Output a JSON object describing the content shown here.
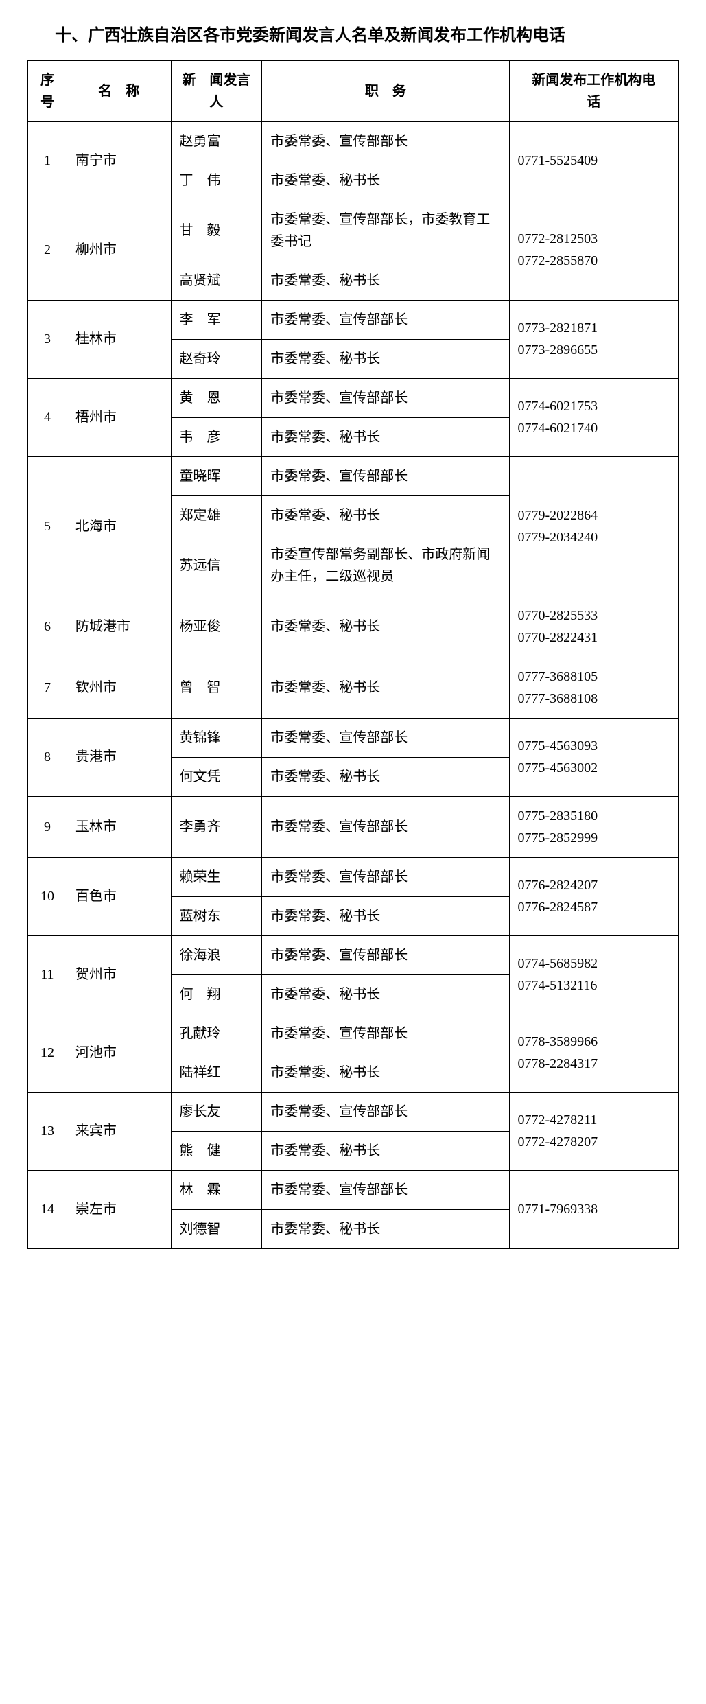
{
  "title": "十、广西壮族自治区各市党委新闻发言人名单及新闻发布工作机构电话",
  "headers": {
    "seq": "序号",
    "name": "名　称",
    "person": "新　闻发言人",
    "duty": "职　务",
    "phone": "新闻发布工作机构电　　话"
  },
  "rows": [
    {
      "seq": "1",
      "name": "南宁市",
      "phone": "0771-5525409",
      "people": [
        {
          "person": "赵勇富",
          "duty": "市委常委、宣传部部长"
        },
        {
          "person": "丁　伟",
          "duty": "市委常委、秘书长"
        }
      ]
    },
    {
      "seq": "2",
      "name": "柳州市",
      "phone": "0772-2812503\n0772-2855870",
      "people": [
        {
          "person": "甘　毅",
          "duty": "市委常委、宣传部部长，市委教育工委书记"
        },
        {
          "person": "高贤斌",
          "duty": "市委常委、秘书长"
        }
      ]
    },
    {
      "seq": "3",
      "name": "桂林市",
      "phone": "0773-2821871\n0773-2896655",
      "people": [
        {
          "person": "李　军",
          "duty": "市委常委、宣传部部长"
        },
        {
          "person": "赵奇玲",
          "duty": "市委常委、秘书长"
        }
      ]
    },
    {
      "seq": "4",
      "name": "梧州市",
      "phone": "0774-6021753\n0774-6021740",
      "people": [
        {
          "person": "黄　恩",
          "duty": "市委常委、宣传部部长"
        },
        {
          "person": "韦　彦",
          "duty": "市委常委、秘书长"
        }
      ]
    },
    {
      "seq": "5",
      "name": "北海市",
      "phone": "0779-2022864\n0779-2034240",
      "people": [
        {
          "person": "童晓晖",
          "duty": "市委常委、宣传部部长"
        },
        {
          "person": "郑定雄",
          "duty": "市委常委、秘书长"
        },
        {
          "person": "苏远信",
          "duty": "市委宣传部常务副部长、市政府新闻办主任，二级巡视员"
        }
      ]
    },
    {
      "seq": "6",
      "name": "防城港市",
      "phone": "0770-2825533\n0770-2822431",
      "people": [
        {
          "person": "杨亚俊",
          "duty": "市委常委、秘书长"
        }
      ]
    },
    {
      "seq": "7",
      "name": "钦州市",
      "phone": "0777-3688105\n0777-3688108",
      "people": [
        {
          "person": "曾　智",
          "duty": "市委常委、秘书长"
        }
      ]
    },
    {
      "seq": "8",
      "name": "贵港市",
      "phone": "0775-4563093\n0775-4563002",
      "people": [
        {
          "person": "黄锦锋",
          "duty": "市委常委、宣传部部长"
        },
        {
          "person": "何文凭",
          "duty": "市委常委、秘书长"
        }
      ]
    },
    {
      "seq": "9",
      "name": "玉林市",
      "phone": "0775-2835180\n0775-2852999",
      "people": [
        {
          "person": "李勇齐",
          "duty": "市委常委、宣传部部长"
        }
      ]
    },
    {
      "seq": "10",
      "name": "百色市",
      "phone": "0776-2824207\n0776-2824587",
      "people": [
        {
          "person": "赖荣生",
          "duty": "市委常委、宣传部部长"
        },
        {
          "person": "蓝树东",
          "duty": "市委常委、秘书长"
        }
      ]
    },
    {
      "seq": "11",
      "name": "贺州市",
      "phone": "0774-5685982\n0774-5132116",
      "people": [
        {
          "person": "徐海浪",
          "duty": "市委常委、宣传部部长"
        },
        {
          "person": "何　翔",
          "duty": "市委常委、秘书长"
        }
      ]
    },
    {
      "seq": "12",
      "name": "河池市",
      "phone": "0778-3589966\n0778-2284317",
      "people": [
        {
          "person": "孔献玲",
          "duty": "市委常委、宣传部部长"
        },
        {
          "person": "陆祥红",
          "duty": "市委常委、秘书长"
        }
      ]
    },
    {
      "seq": "13",
      "name": "来宾市",
      "phone": "0772-4278211\n0772-4278207",
      "people": [
        {
          "person": "廖长友",
          "duty": "市委常委、宣传部部长"
        },
        {
          "person": "熊　健",
          "duty": "市委常委、秘书长"
        }
      ]
    },
    {
      "seq": "14",
      "name": "崇左市",
      "phone": "0771-7969338",
      "people": [
        {
          "person": "林　霖",
          "duty": "市委常委、宣传部部长"
        },
        {
          "person": "刘德智",
          "duty": "市委常委、秘书长"
        }
      ]
    }
  ]
}
